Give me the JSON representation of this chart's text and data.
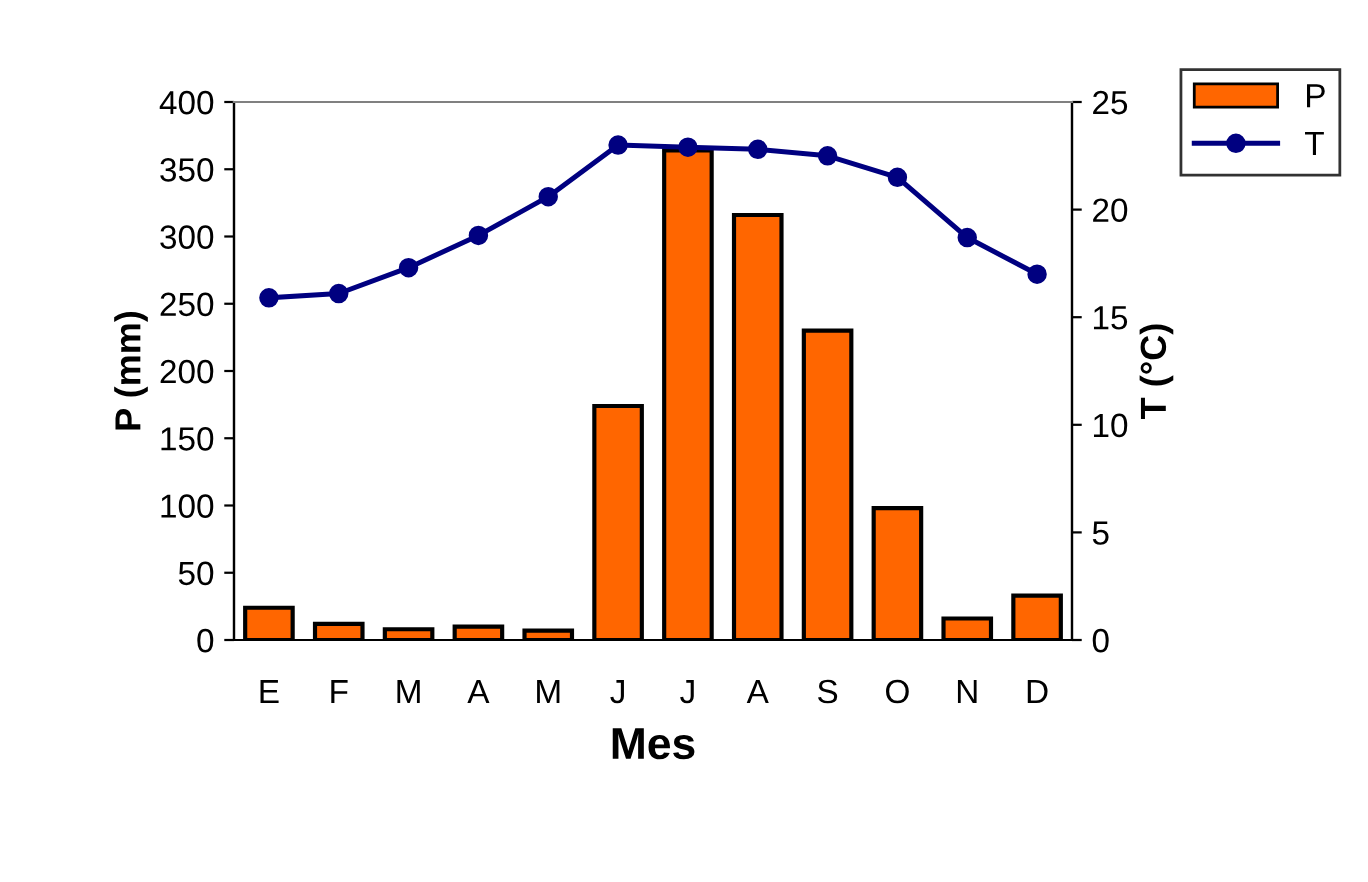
{
  "chart_data": {
    "type": "bar",
    "xlabel": "Mes",
    "ylabel": "P (mm)",
    "y2label": "T (°C)",
    "categories": [
      "E",
      "F",
      "M",
      "A",
      "M",
      "J",
      "J",
      "A",
      "S",
      "O",
      "N",
      "D"
    ],
    "series": [
      {
        "name": "P",
        "color": "#ff6600",
        "values": [
          24,
          12,
          8,
          10,
          7,
          174,
          364,
          316,
          230,
          98,
          16,
          33
        ]
      },
      {
        "name": "T",
        "type": "line",
        "axis": "y2",
        "color": "#000080",
        "marker": "circle",
        "values": [
          15.9,
          16.1,
          17.3,
          18.8,
          20.6,
          23.0,
          22.9,
          22.8,
          22.5,
          21.5,
          18.7,
          17.0
        ]
      }
    ],
    "ylim": [
      0,
      400
    ],
    "yticks": [
      0,
      50,
      100,
      150,
      200,
      250,
      300,
      350,
      400
    ],
    "y2lim": [
      0,
      25
    ],
    "y2ticks": [
      0,
      5,
      10,
      15,
      20,
      25
    ],
    "grid": false,
    "legend": "top right"
  }
}
